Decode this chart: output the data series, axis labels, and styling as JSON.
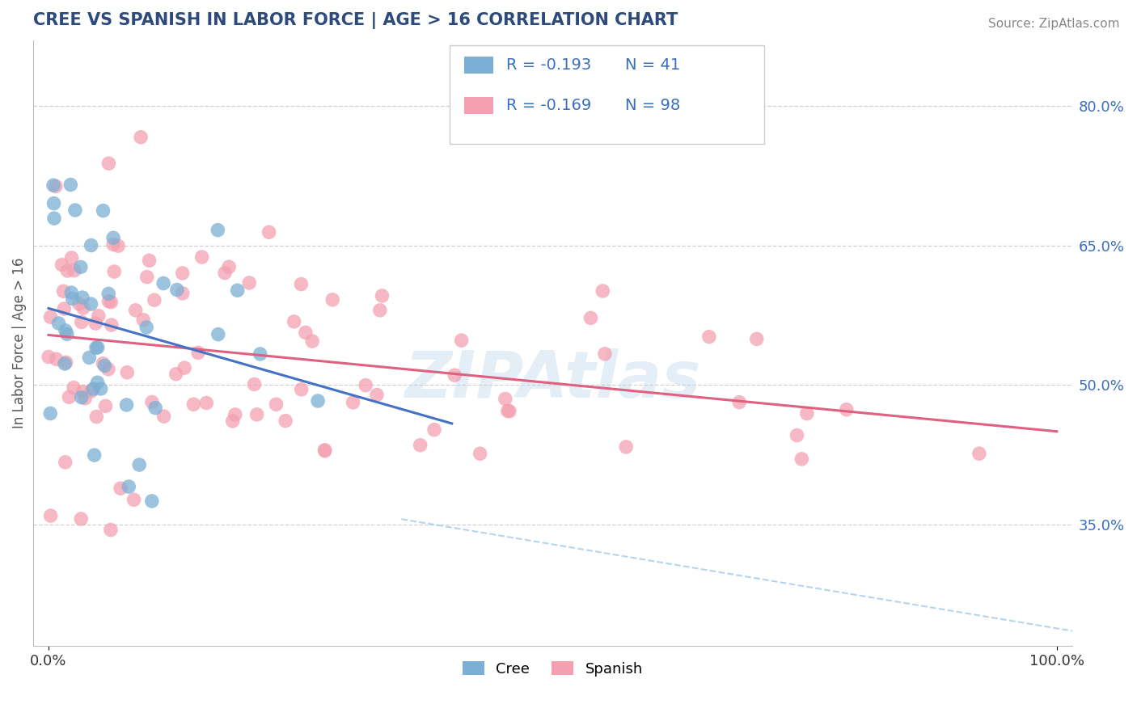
{
  "title": "CREE VS SPANISH IN LABOR FORCE | AGE > 16 CORRELATION CHART",
  "source_text": "Source: ZipAtlas.com",
  "ylabel": "In Labor Force | Age > 16",
  "watermark": "ZIPAtlas",
  "cree_color": "#7bafd4",
  "spanish_color": "#f4a0b0",
  "cree_R": -0.193,
  "cree_N": 41,
  "spanish_R": -0.169,
  "spanish_N": 98,
  "title_color": "#2c4a7c",
  "source_color": "#888888",
  "legend_R_color": "#3a6fbe",
  "grid_color": "#cccccc",
  "ref_line_color": "#aaccee",
  "cree_line_color": "#4472c4",
  "spanish_line_color": "#e06080",
  "background_color": "#ffffff",
  "ylim_low": 0.22,
  "ylim_high": 0.87,
  "y_ticks": [
    0.35,
    0.5,
    0.65,
    0.8
  ],
  "y_tick_labels": [
    "35.0%",
    "50.0%",
    "65.0%",
    "80.0%"
  ]
}
